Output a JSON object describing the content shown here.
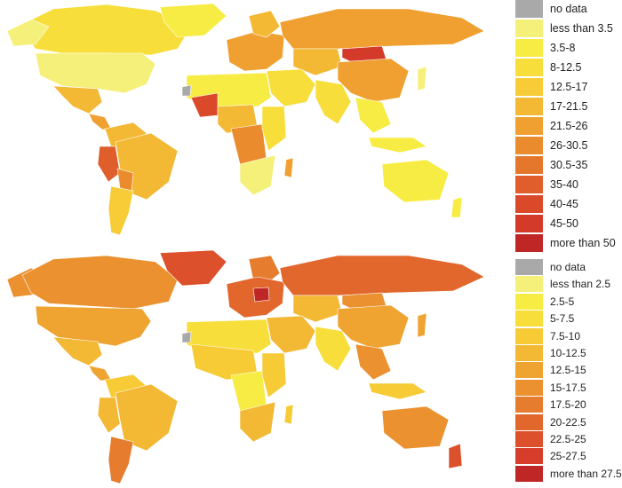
{
  "maps": [
    {
      "id": "top",
      "legend": [
        {
          "label": "no data",
          "color": "#a9a9a9"
        },
        {
          "label": "less than 3.5",
          "color": "#f5f07a"
        },
        {
          "label": "3.5-8",
          "color": "#f7ec43"
        },
        {
          "label": "8-12.5",
          "color": "#f8de3a"
        },
        {
          "label": "12.5-17",
          "color": "#f7cc36"
        },
        {
          "label": "17-21.5",
          "color": "#f3b834"
        },
        {
          "label": "21.5-26",
          "color": "#efa031"
        },
        {
          "label": "26-30.5",
          "color": "#ea8c2e"
        },
        {
          "label": "30.5-35",
          "color": "#e5772c"
        },
        {
          "label": "35-40",
          "color": "#e05e2b"
        },
        {
          "label": "40-45",
          "color": "#da4a2a"
        },
        {
          "label": "45-50",
          "color": "#d43a2a"
        },
        {
          "label": "more than 50",
          "color": "#bf2727"
        }
      ]
    },
    {
      "id": "bottom",
      "legend": [
        {
          "label": "no data",
          "color": "#a9a9a9"
        },
        {
          "label": "less than 2.5",
          "color": "#f5f07a"
        },
        {
          "label": "2.5-5",
          "color": "#f7ec43"
        },
        {
          "label": "5-7.5",
          "color": "#f8de3a"
        },
        {
          "label": "7.5-10",
          "color": "#f6cb36"
        },
        {
          "label": "10-12.5",
          "color": "#f3b834"
        },
        {
          "label": "12.5-15",
          "color": "#efa331"
        },
        {
          "label": "15-17.5",
          "color": "#eb912f"
        },
        {
          "label": "17.5-20",
          "color": "#e67c2d"
        },
        {
          "label": "20-22.5",
          "color": "#e2672c"
        },
        {
          "label": "22.5-25",
          "color": "#dc502b"
        },
        {
          "label": "25-27.5",
          "color": "#d63d2a"
        },
        {
          "label": "more than 27.5",
          "color": "#bf2727"
        }
      ]
    }
  ]
}
